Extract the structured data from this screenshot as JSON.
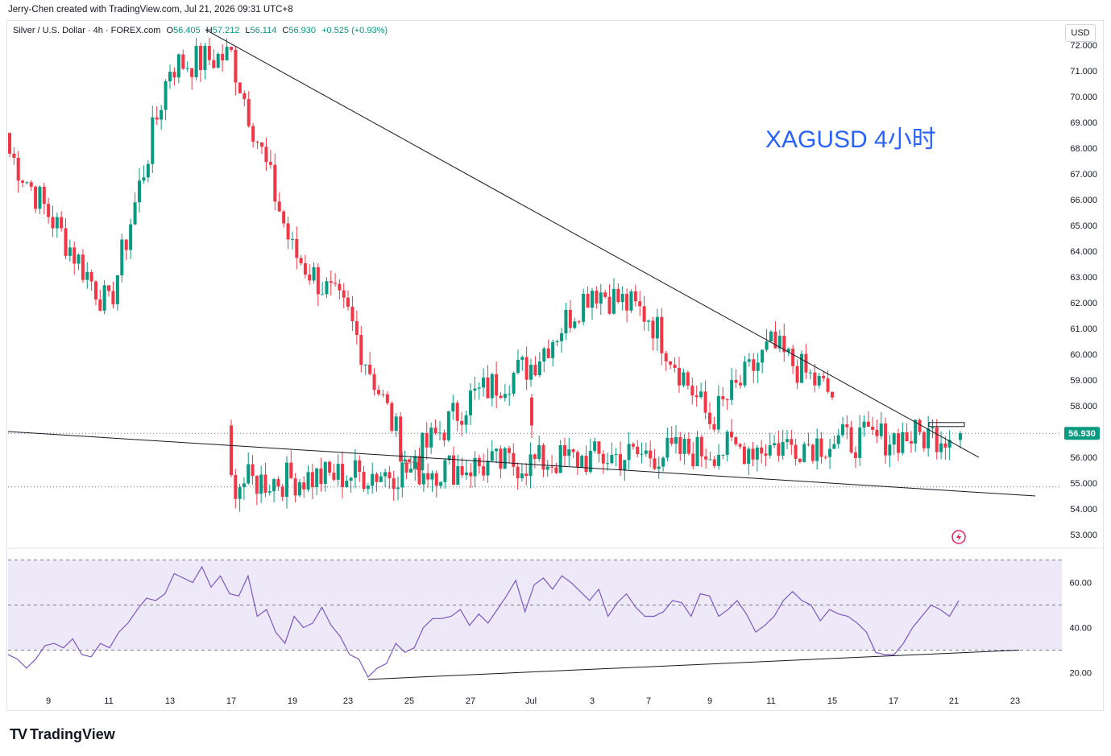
{
  "header": {
    "created_text": "Jerry-Chen created with TradingView.com, Jul 21, 2026 09:31 UTC+8"
  },
  "legend": {
    "symbol": "Silver / U.S. Dollar · 4h · FOREX.com",
    "o_label": "O",
    "o_value": "56.405",
    "h_label": "H",
    "h_value": "57.212",
    "l_label": "L",
    "l_value": "56.114",
    "c_label": "C",
    "c_value": "56.930",
    "change": "+0.525 (+0.93%)"
  },
  "currency_button": "USD",
  "annotation": "XAGUSD 4小时",
  "last_price_label": "56.930",
  "brand": {
    "mark": "TV",
    "name": "TradingView"
  },
  "colors": {
    "up": "#089981",
    "down": "#f23645",
    "rsi_line": "#7e57c2",
    "rsi_band": "#ede9f9",
    "trendline": "#131722",
    "annotation": "#2962ff"
  },
  "chart_data": [
    {
      "type": "candlestick",
      "price_axis": {
        "ylim": [
          52.5,
          72.5
        ],
        "ticks": [
          "53.000",
          "54.000",
          "55.000",
          "56.000",
          "57.000",
          "58.000",
          "59.000",
          "60.000",
          "61.000",
          "62.000",
          "63.000",
          "64.000",
          "65.000",
          "66.000",
          "67.000",
          "68.000",
          "69.000",
          "70.000",
          "71.000",
          "72.000"
        ]
      },
      "x_axis": {
        "ticks": [
          "9",
          "11",
          "13",
          "17",
          "19",
          "23",
          "25",
          "27",
          "Jul",
          "3",
          "7",
          "9",
          "11",
          "15",
          "17",
          "21",
          "23"
        ]
      },
      "horizontal_levels": [
        56.93,
        54.85
      ],
      "swing_points": [
        {
          "x": "9",
          "price": 67.8
        },
        {
          "x": "11",
          "price": 61.8
        },
        {
          "x": "13",
          "price": 71.2
        },
        {
          "x": "17",
          "price": 71.6
        },
        {
          "x": "19",
          "price": 64.0
        },
        {
          "x": "23",
          "price": 61.5
        },
        {
          "x": "25",
          "price": 55.7
        },
        {
          "x": "27",
          "price": 58.3
        },
        {
          "x": "Jul",
          "price": 59.6
        },
        {
          "x": "3",
          "price": 62.6
        },
        {
          "x": "7",
          "price": 61.5
        },
        {
          "x": "9",
          "price": 57.4
        },
        {
          "x": "11",
          "price": 60.3
        },
        {
          "x": "15",
          "price": 58.4
        },
        {
          "x": "17",
          "price": 55.0
        },
        {
          "x": "21",
          "price": 56.93
        }
      ],
      "trendlines": [
        {
          "name": "resistance",
          "from": {
            "x": "16",
            "price": 72.6
          },
          "to": {
            "x": "21",
            "price": 56.0
          }
        },
        {
          "name": "support",
          "from": {
            "x": "7",
            "price": 57.0
          },
          "to": {
            "x": "23",
            "price": 54.5
          }
        }
      ]
    },
    {
      "type": "line",
      "indicator": "RSI",
      "ylim": [
        13,
        72
      ],
      "y_ticks": [
        "20.00",
        "40.00",
        "60.00"
      ],
      "bands": [
        30,
        50,
        70
      ],
      "values": [
        28,
        26,
        22,
        26,
        32,
        33,
        31,
        35,
        28,
        27,
        33,
        31,
        38,
        42,
        48,
        53,
        52,
        55,
        64,
        62,
        60,
        67,
        58,
        63,
        55,
        54,
        63,
        45,
        48,
        38,
        33,
        45,
        40,
        42,
        49,
        41,
        36,
        28,
        26,
        18,
        22,
        24,
        33,
        29,
        31,
        40,
        44,
        44,
        45,
        48,
        41,
        46,
        42,
        48,
        54,
        61,
        47,
        59,
        62,
        57,
        63,
        60,
        56,
        52,
        57,
        45,
        51,
        55,
        49,
        45,
        45,
        47,
        52,
        51,
        45,
        55,
        54,
        45,
        48,
        52,
        46,
        38,
        41,
        45,
        52,
        56,
        52,
        50,
        43,
        48,
        46,
        45,
        42,
        38,
        29,
        28,
        28,
        33,
        40,
        45,
        50,
        48,
        45,
        52
      ],
      "trendline": {
        "from_index": 39,
        "from_value": 17,
        "to_value": 30
      }
    }
  ]
}
